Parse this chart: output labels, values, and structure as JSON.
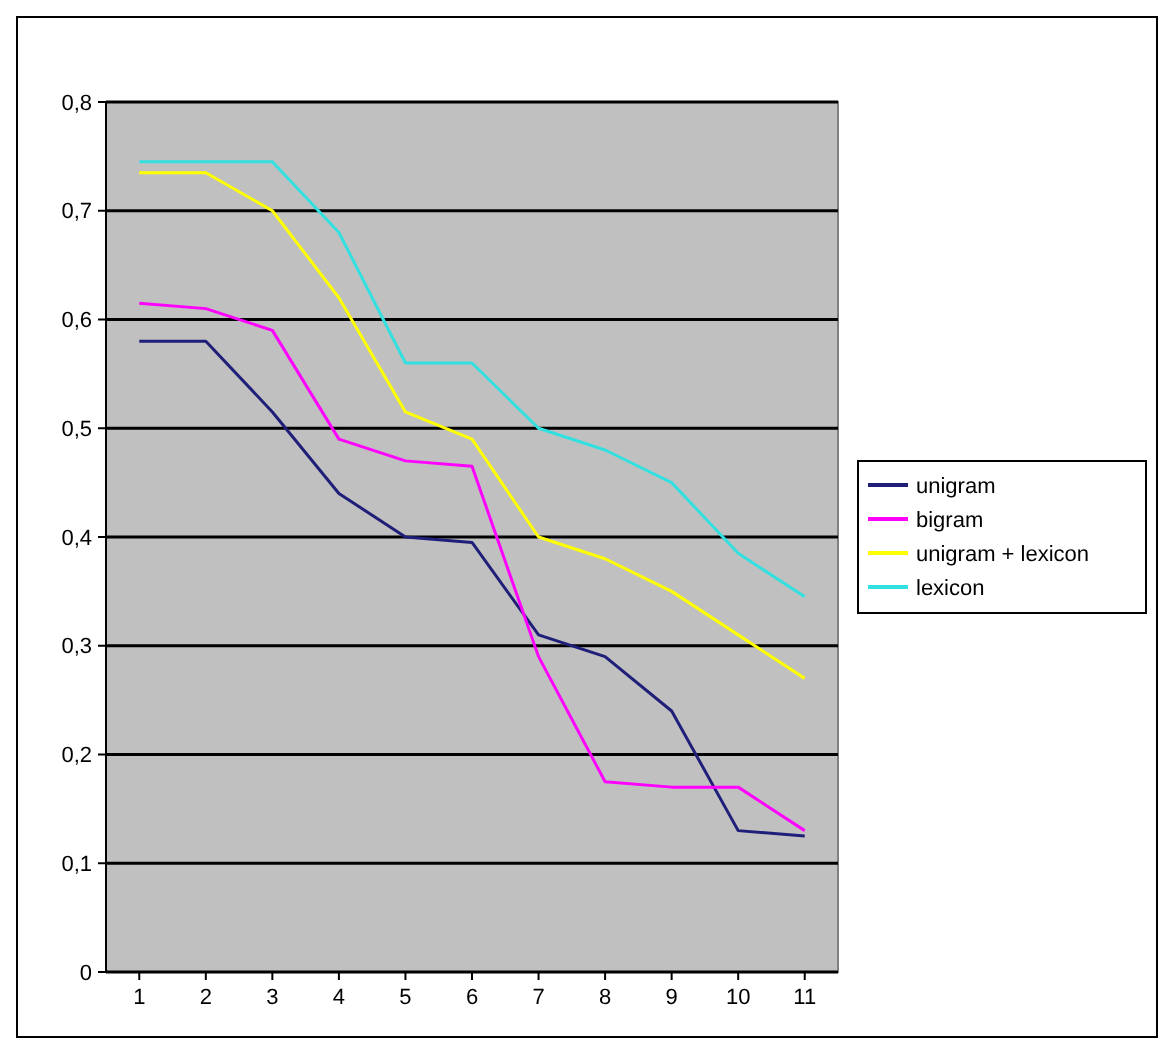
{
  "chart_data": {
    "type": "line",
    "x": [
      1,
      2,
      3,
      4,
      5,
      6,
      7,
      8,
      9,
      10,
      11
    ],
    "xlim": [
      0.5,
      11.5
    ],
    "xticks": [
      1,
      2,
      3,
      4,
      5,
      6,
      7,
      8,
      9,
      10,
      11
    ],
    "ylim": [
      0,
      0.8
    ],
    "yticks": [
      {
        "value": 0,
        "label": "0"
      },
      {
        "value": 0.1,
        "label": "0,1"
      },
      {
        "value": 0.2,
        "label": "0,2"
      },
      {
        "value": 0.3,
        "label": "0,3"
      },
      {
        "value": 0.4,
        "label": "0,4"
      },
      {
        "value": 0.5,
        "label": "0,5"
      },
      {
        "value": 0.6,
        "label": "0,6"
      },
      {
        "value": 0.7,
        "label": "0,7"
      },
      {
        "value": 0.8,
        "label": "0,8"
      }
    ],
    "grid": "y",
    "legend": "right",
    "marker": "none",
    "line_style": "solid",
    "series": [
      {
        "name": "unigram",
        "color": "#1f1f7a",
        "values": [
          0.58,
          0.58,
          0.515,
          0.44,
          0.4,
          0.395,
          0.31,
          0.29,
          0.24,
          0.13,
          0.125
        ]
      },
      {
        "name": "bigram",
        "color": "#ff00ff",
        "values": [
          0.615,
          0.61,
          0.59,
          0.49,
          0.47,
          0.465,
          0.29,
          0.175,
          0.17,
          0.17,
          0.13
        ]
      },
      {
        "name": "unigram + lexicon",
        "color": "#ffff00",
        "values": [
          0.735,
          0.735,
          0.7,
          0.62,
          0.515,
          0.49,
          0.4,
          0.38,
          0.35,
          0.31,
          0.27
        ]
      },
      {
        "name": "lexicon",
        "color": "#33e0e0",
        "values": [
          0.745,
          0.745,
          0.745,
          0.68,
          0.56,
          0.56,
          0.5,
          0.48,
          0.45,
          0.385,
          0.345
        ]
      }
    ]
  }
}
